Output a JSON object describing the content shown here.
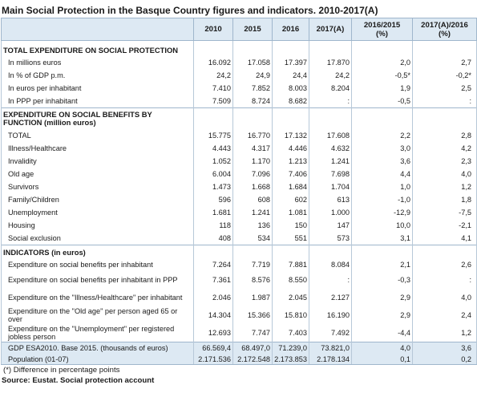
{
  "title": "Main Social Protection in the Basque Country figures  and indicators. 2010-2017(A)",
  "headers": {
    "c2010": "2010",
    "c2015": "2015",
    "c2016": "2016",
    "c2017": "2017(A)",
    "v1a": "2016/2015",
    "v1b": "(%)",
    "v2a": "2017(A)/2016",
    "v2b": "(%)"
  },
  "sections": {
    "s1": "TOTAL EXPENDITURE ON SOCIAL PROTECTION",
    "s2": "EXPENDITURE ON SOCIAL BENEFITS BY FUNCTION (million euros)",
    "s3": "INDICATORS (in euros)"
  },
  "rows": [
    {
      "label": "In millions euros",
      "v": [
        "16.092",
        "17.058",
        "17.397",
        "17.870",
        "2,0",
        "2,7"
      ]
    },
    {
      "label": "In % of GDP p.m.",
      "v": [
        "24,2",
        "24,9",
        "24,4",
        "24,2",
        "-0,5*",
        "-0,2*"
      ]
    },
    {
      "label": "In euros per inhabitant",
      "v": [
        "7.410",
        "7.852",
        "8.003",
        "8.204",
        "1,9",
        "2,5"
      ]
    },
    {
      "label": "In PPP per inhabitant",
      "v": [
        "7.509",
        "8.724",
        "8.682",
        ":",
        "-0,5",
        ":"
      ]
    },
    {
      "label": "TOTAL",
      "v": [
        "15.775",
        "16.770",
        "17.132",
        "17.608",
        "2,2",
        "2,8"
      ]
    },
    {
      "label": "Illness/Healthcare",
      "v": [
        "4.443",
        "4.317",
        "4.446",
        "4.632",
        "3,0",
        "4,2"
      ]
    },
    {
      "label": "Invalidity",
      "v": [
        "1.052",
        "1.170",
        "1.213",
        "1.241",
        "3,6",
        "2,3"
      ]
    },
    {
      "label": "Old age",
      "v": [
        "6.004",
        "7.096",
        "7.406",
        "7.698",
        "4,4",
        "4,0"
      ]
    },
    {
      "label": "Survivors",
      "v": [
        "1.473",
        "1.668",
        "1.684",
        "1.704",
        "1,0",
        "1,2"
      ]
    },
    {
      "label": "Family/Children",
      "v": [
        "596",
        "608",
        "602",
        "613",
        "-1,0",
        "1,8"
      ]
    },
    {
      "label": "Unemployment",
      "v": [
        "1.681",
        "1.241",
        "1.081",
        "1.000",
        "-12,9",
        "-7,5"
      ]
    },
    {
      "label": "Housing",
      "v": [
        "118",
        "136",
        "150",
        "147",
        "10,0",
        "-2,1"
      ]
    },
    {
      "label": "Social exclusion",
      "v": [
        "408",
        "534",
        "551",
        "573",
        "3,1",
        "4,1"
      ]
    },
    {
      "label": "Expenditure on social benefits per inhabitant",
      "v": [
        "7.264",
        "7.719",
        "7.881",
        "8.084",
        "2,1",
        "2,6"
      ]
    },
    {
      "label": "Expenditure on social benefits per inhabitant in PPP",
      "v": [
        "7.361",
        "8.576",
        "8.550",
        ":",
        "-0,3",
        ":"
      ]
    },
    {
      "label": "Expenditure on the \"Illness/Healthcare\" per inhabitant",
      "v": [
        "2.046",
        "1.987",
        "2.045",
        "2.127",
        "2,9",
        "4,0"
      ]
    },
    {
      "label": "Expenditure on the \"Old age\" per person aged 65 or over",
      "v": [
        "14.304",
        "15.366",
        "15.810",
        "16.190",
        "2,9",
        "2,4"
      ]
    },
    {
      "label": "Expenditure on the \"Unemployment\" per registered jobless person",
      "v": [
        "12.693",
        "7.747",
        "7.403",
        "7.492",
        "-4,4",
        "1,2"
      ]
    },
    {
      "label": "GDP ESA2010. Base 2015. (thousands of euros)",
      "v": [
        "66.569,4",
        "68.497,0",
        "71.239,0",
        "73.821,0",
        "4,0",
        "3,6"
      ]
    },
    {
      "label": "Population (01-07)",
      "v": [
        "2.171.536",
        "2.172.548",
        "2.173.853",
        "2.178.134",
        "0,1",
        "0,2"
      ]
    }
  ],
  "footnote": "(*) Difference in percentage points",
  "source": "Source: Eustat. Social protection account"
}
